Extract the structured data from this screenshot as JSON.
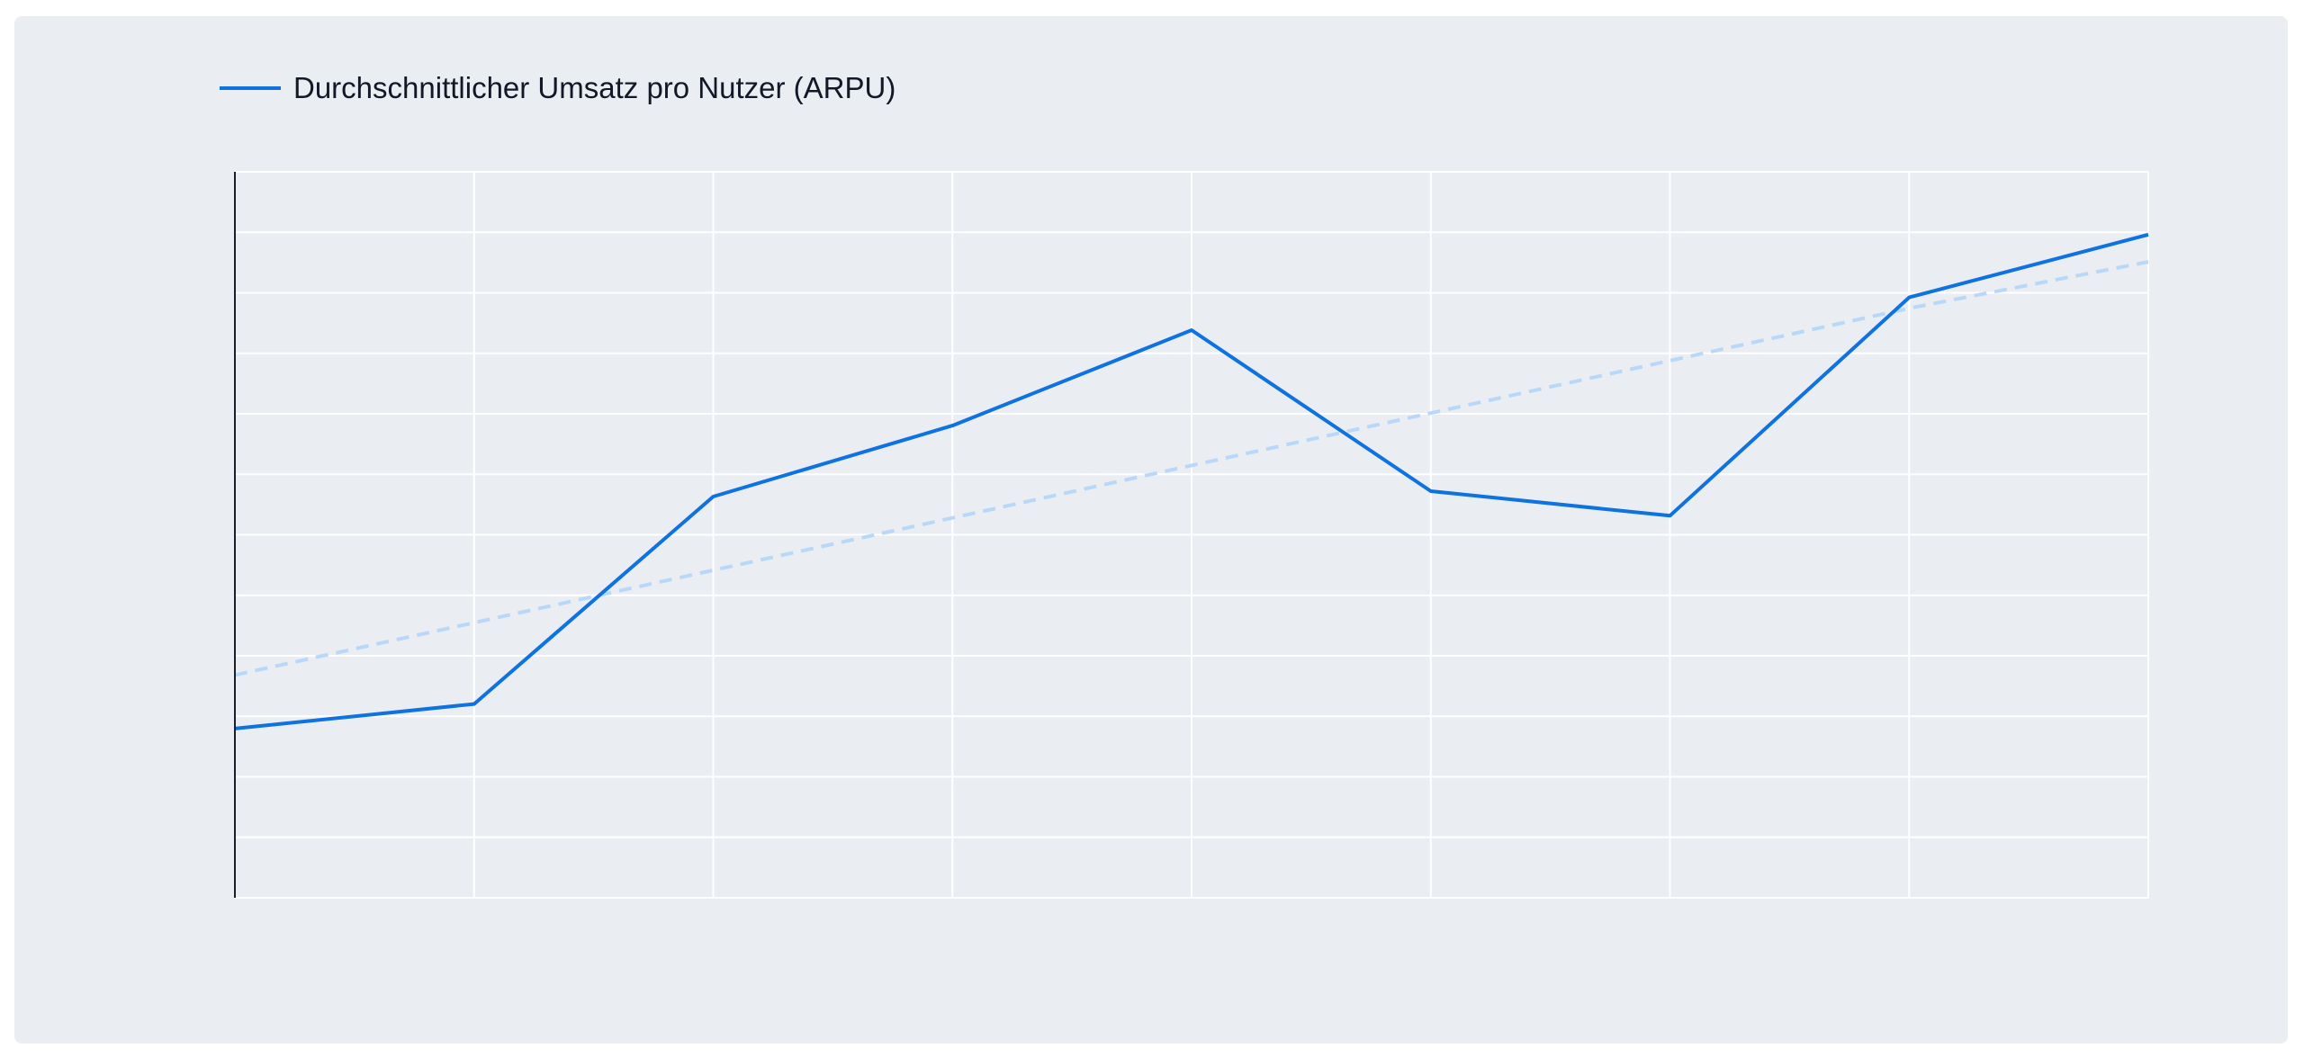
{
  "chart_data": {
    "type": "line",
    "categories": [
      "",
      "",
      "",
      "",
      "",
      "",
      "",
      "",
      ""
    ],
    "series": [
      {
        "name": "Durchschnittlicher Umsatz pro Nutzer (ARPU)",
        "values": [
          18,
          22.5,
          60.5,
          73.5,
          91,
          61.5,
          57,
          97,
          108.5
        ],
        "color": "#0e72e0",
        "style": "solid"
      },
      {
        "values": [
          27.8,
          37.4,
          47,
          56.6,
          66.2,
          75.8,
          85.4,
          95,
          103.5
        ],
        "color": "#b9d8f7",
        "style": "dashed"
      }
    ],
    "ylim": [
      -13,
      120
    ],
    "y_gridlines": 12,
    "xlabel": "",
    "ylabel": "",
    "title": "",
    "grid": true,
    "legend_position": "top-left"
  }
}
